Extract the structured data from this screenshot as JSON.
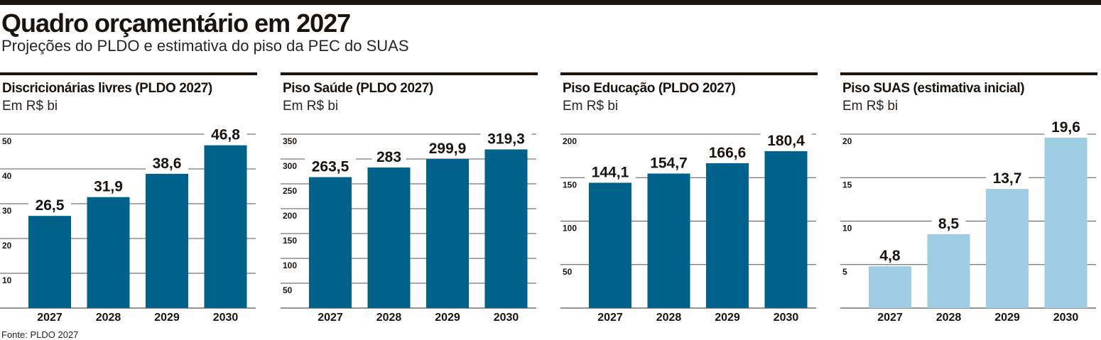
{
  "title": "Quadro orçamentário em 2027",
  "subtitle": "Projeções do PLDO e estimativa do piso da PEC do SUAS",
  "source": "Fonte: PLDO 2027",
  "colors": {
    "dark_bar": "#00618a",
    "light_bar": "#9fcde4",
    "grid": "#555555",
    "text": "#1a1410"
  },
  "chart_data": [
    {
      "type": "bar",
      "title": "Discricionárias livres (PLDO 2027)",
      "unit": "Em R$ bi",
      "categories": [
        "2027",
        "2028",
        "2029",
        "2030"
      ],
      "values": [
        26.5,
        31.9,
        38.6,
        46.8
      ],
      "labels": [
        "26,5",
        "31,9",
        "38,6",
        "46,8"
      ],
      "ylim": [
        0,
        50
      ],
      "yticks": [
        10,
        20,
        30,
        40,
        50
      ],
      "grid": true,
      "color": "#00618a"
    },
    {
      "type": "bar",
      "title": "Piso Saúde (PLDO 2027)",
      "unit": "Em R$ bi",
      "categories": [
        "2027",
        "2028",
        "2029",
        "2030"
      ],
      "values": [
        263.5,
        283,
        299.9,
        319.3
      ],
      "labels": [
        "263,5",
        "283",
        "299,9",
        "319,3"
      ],
      "ylim": [
        0,
        350
      ],
      "yticks": [
        50,
        100,
        150,
        200,
        250,
        300,
        350
      ],
      "grid": true,
      "color": "#00618a"
    },
    {
      "type": "bar",
      "title": "Piso Educação (PLDO 2027)",
      "unit": "Em R$ bi",
      "categories": [
        "2027",
        "2028",
        "2029",
        "2030"
      ],
      "values": [
        144.1,
        154.7,
        166.6,
        180.4
      ],
      "labels": [
        "144,1",
        "154,7",
        "166,6",
        "180,4"
      ],
      "ylim": [
        0,
        200
      ],
      "yticks": [
        50,
        100,
        150,
        200
      ],
      "grid": true,
      "color": "#00618a"
    },
    {
      "type": "bar",
      "title": "Piso SUAS (estimativa inicial)",
      "unit": "Em R$ bi",
      "categories": [
        "2027",
        "2028",
        "2029",
        "2030"
      ],
      "values": [
        4.8,
        8.5,
        13.7,
        19.6
      ],
      "labels": [
        "4,8",
        "8,5",
        "13,7",
        "19,6"
      ],
      "ylim": [
        0,
        20
      ],
      "yticks": [
        5,
        10,
        15,
        20
      ],
      "grid": true,
      "color": "#9fcde4"
    }
  ]
}
